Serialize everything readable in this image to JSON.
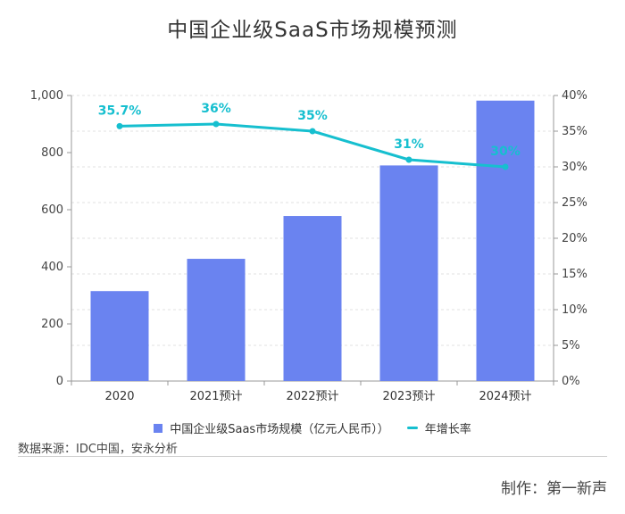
{
  "title": "中国企业级SaaS市场规模预测",
  "legend": {
    "bar_label": "中国企业级Saas市场规模（亿元人民币））",
    "line_label": "年增长率"
  },
  "source": "数据来源：IDC中国，安永分析",
  "credit": "制作：第一新声",
  "colors": {
    "bar": "#6a83f0",
    "line": "#16bfcf",
    "line_label": "#16bfcf",
    "grid": "#e2e2e2",
    "axis": "#999999"
  },
  "chart_data": {
    "type": "bar",
    "title": "中国企业级SaaS市场规模预测",
    "categories": [
      "2020",
      "2021预计",
      "2022预计",
      "2023预计",
      "2024预计"
    ],
    "series": [
      {
        "name": "中国企业级Saas市场规模（亿元人民币））",
        "type": "bar",
        "axis": "left",
        "values": [
          315,
          428,
          578,
          755,
          982
        ]
      },
      {
        "name": "年增长率",
        "type": "line",
        "axis": "right",
        "values": [
          35.7,
          36,
          35,
          31,
          30
        ],
        "labels": [
          "35.7%",
          "36%",
          "35%",
          "31%",
          "30%"
        ]
      }
    ],
    "y_left": {
      "min": 0,
      "max": 1000,
      "ticks": [
        0,
        200,
        400,
        600,
        800,
        1000
      ],
      "tick_labels": [
        "0",
        "200",
        "400",
        "600",
        "800",
        "1,000"
      ]
    },
    "y_right": {
      "min": 0,
      "max": 40,
      "ticks": [
        0,
        5,
        10,
        15,
        20,
        25,
        30,
        35,
        40
      ],
      "tick_labels": [
        "0%",
        "5%",
        "10%",
        "15%",
        "20%",
        "25%",
        "30%",
        "35%",
        "40%"
      ]
    },
    "grid": true,
    "legend_position": "bottom"
  }
}
